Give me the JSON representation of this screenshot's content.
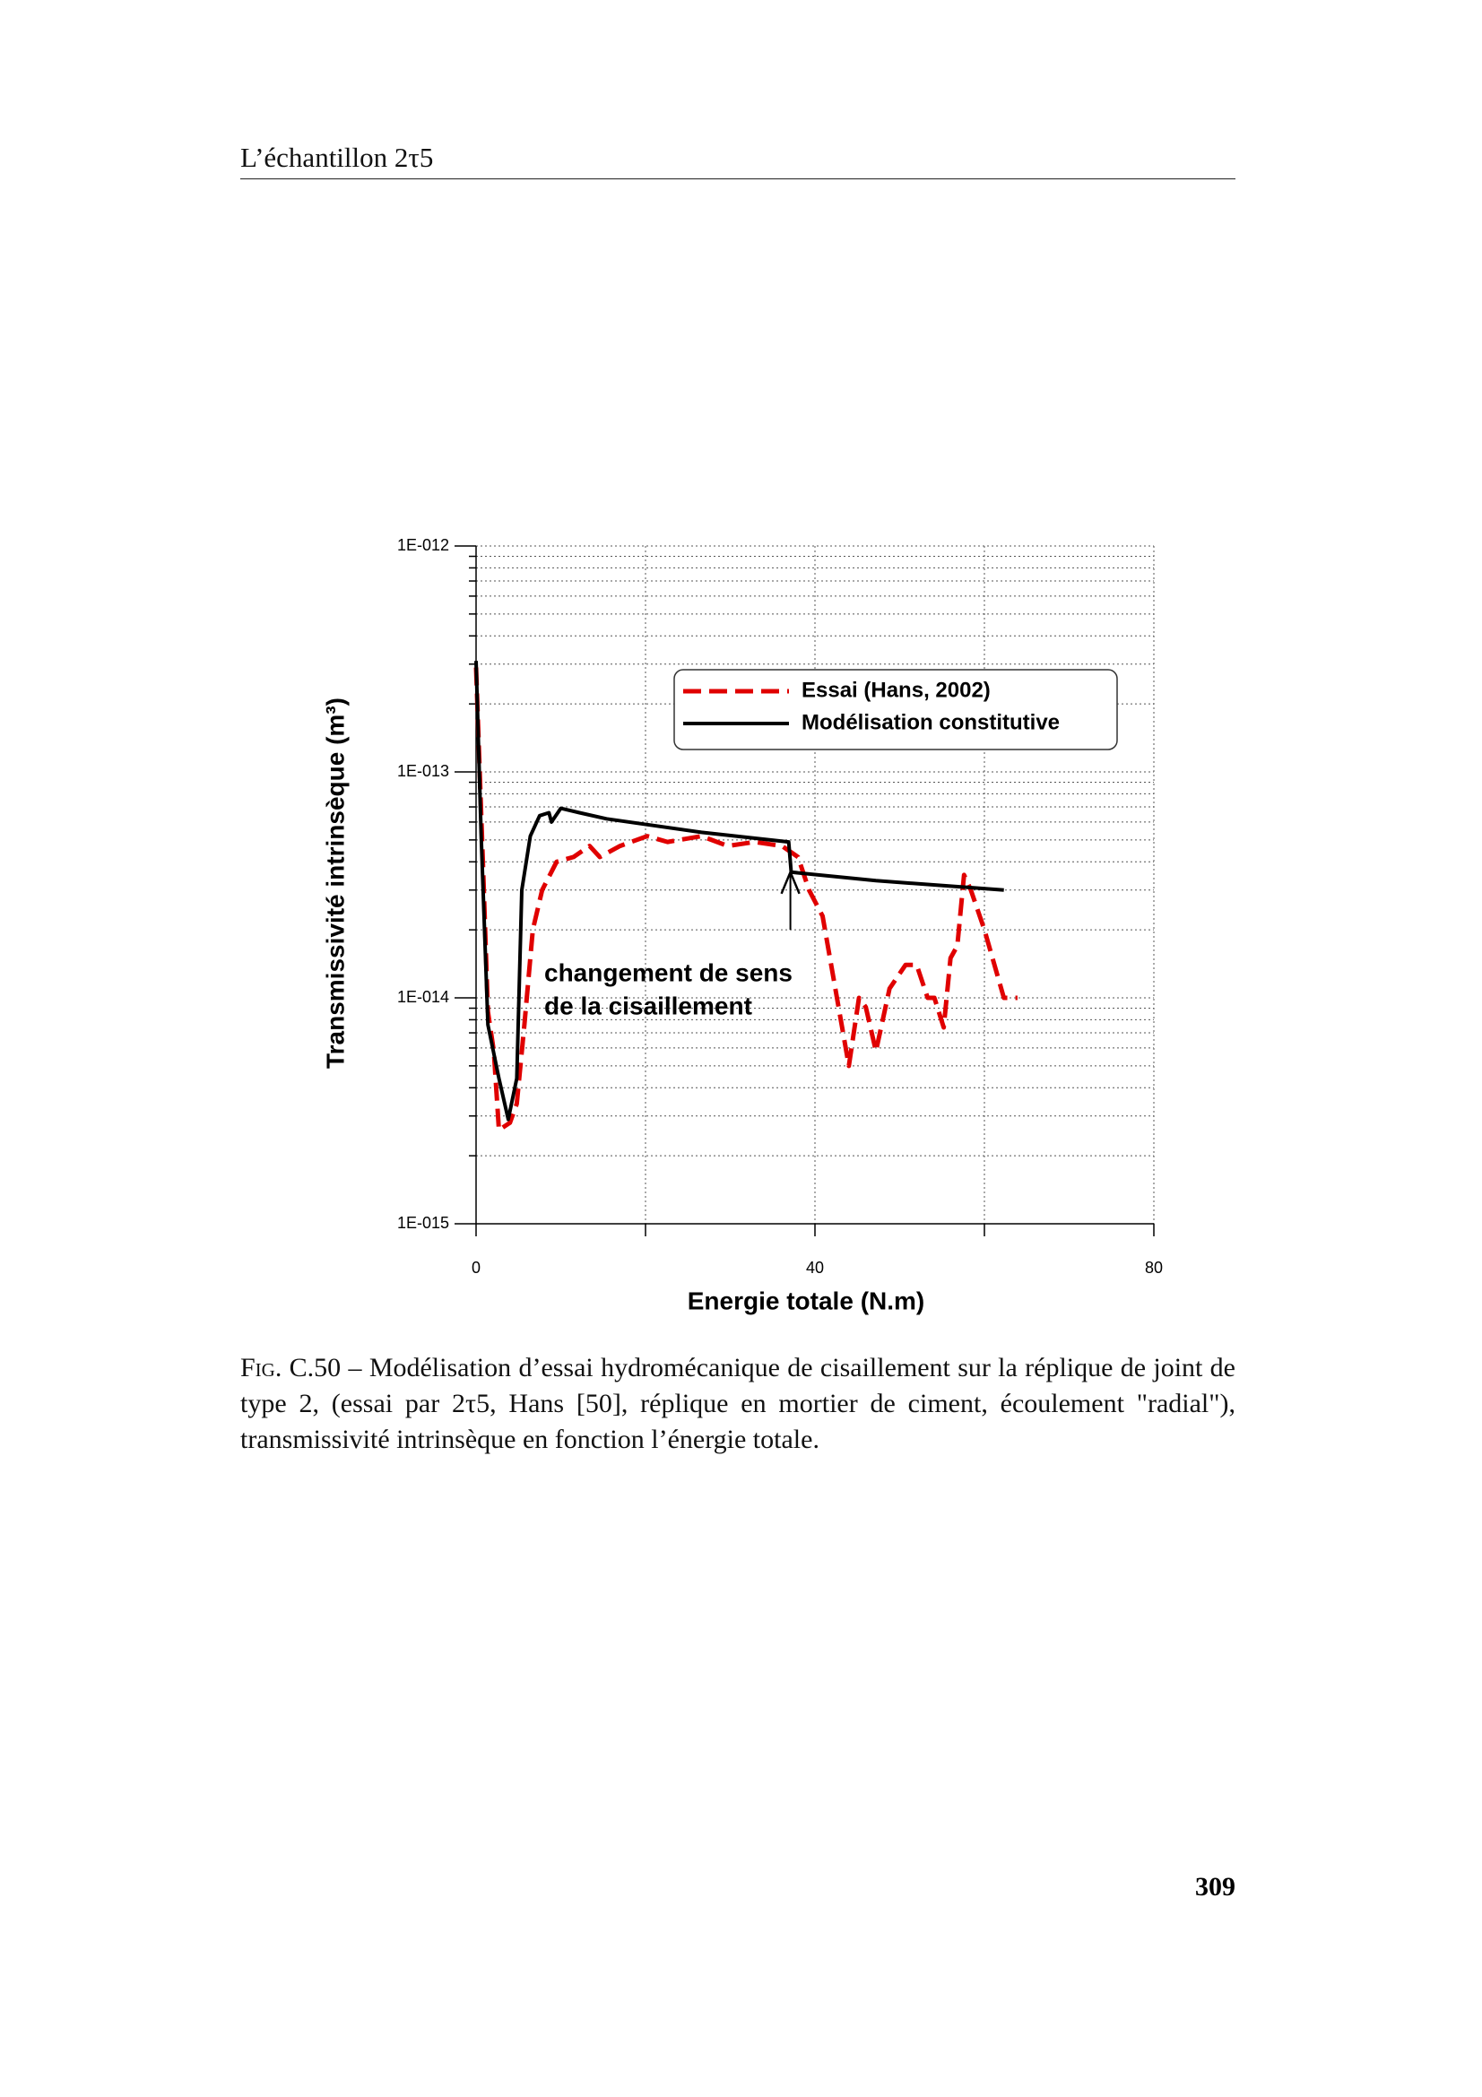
{
  "header": {
    "title": "L’échantillon 2τ5"
  },
  "chart_data": {
    "type": "line",
    "xlabel": "Energie totale (N.m)",
    "ylabel": "Transmissivité intrinsèque (m³)",
    "xlim": [
      0,
      80
    ],
    "xticks": [
      0,
      40,
      80
    ],
    "x_minor_ticks": [
      20,
      60
    ],
    "ylim": [
      1e-15,
      1e-12
    ],
    "log_y": true,
    "grid": true,
    "yticks": [
      {
        "value": 1e-12,
        "label": "1E-012"
      },
      {
        "value": 1e-13,
        "label": "1E-013"
      },
      {
        "value": 1e-14,
        "label": "1E-014"
      },
      {
        "value": 1e-15,
        "label": "1E-015"
      }
    ],
    "legend": "upper right",
    "series": [
      {
        "name": "Essai (Hans, 2002)",
        "color": "#e00000",
        "style": "dashed",
        "x": [
          0,
          0.8,
          1.4,
          2.1,
          2.7,
          4,
          4.8,
          5.7,
          6.7,
          7.8,
          9.5,
          11.5,
          13.4,
          14.6,
          17,
          20.2,
          22.6,
          26.6,
          29.7,
          32.9,
          36.1,
          38,
          39.3,
          40.9,
          42.4,
          44,
          45.2,
          46,
          47.2,
          48.8,
          50.7,
          52,
          53.3,
          54.1,
          55.2,
          56,
          56.8,
          57.6,
          58.4,
          60,
          62.3,
          63.9
        ],
        "values": [
          2.9e-13,
          4e-14,
          8.7e-15,
          5.8e-15,
          2.6e-15,
          2.8e-15,
          3.4e-15,
          7.6e-15,
          2e-14,
          3e-14,
          4e-14,
          4.2e-14,
          4.7e-14,
          4.2e-14,
          4.7e-14,
          5.2e-14,
          4.9e-14,
          5.2e-14,
          4.7e-14,
          4.9e-14,
          4.7e-14,
          4.2e-14,
          3e-14,
          2.3e-14,
          1.1e-14,
          5e-15,
          1e-14,
          9.1e-15,
          5.8e-15,
          1.1e-14,
          1.4e-14,
          1.4e-14,
          1e-14,
          1e-14,
          7.4e-15,
          1.5e-14,
          1.7e-14,
          3.5e-14,
          3e-14,
          2e-14,
          1e-14,
          1e-14
        ]
      },
      {
        "name": "Modélisation constitutive",
        "color": "#000000",
        "style": "solid",
        "x": [
          0,
          0.6,
          1.4,
          2.7,
          3.8,
          4.8,
          5.4,
          6.4,
          7.5,
          8.6,
          8.9,
          10,
          12.2,
          15.4,
          26.6,
          36.9,
          37.2,
          47.2,
          62.3
        ],
        "values": [
          3.1e-13,
          5.2e-14,
          7.6e-15,
          4.4e-15,
          2.9e-15,
          4.4e-15,
          3e-14,
          5.2e-14,
          6.4e-14,
          6.6e-14,
          6e-14,
          6.9e-14,
          6.6e-14,
          6.2e-14,
          5.4e-14,
          4.9e-14,
          3.6e-14,
          3.3e-14,
          3e-14
        ]
      }
    ],
    "annotation": {
      "lines": [
        "changement de sens",
        "de la cisaillement"
      ],
      "arrow_x": 37.1,
      "arrow_from": 2e-14,
      "arrow_to": 3.6e-14
    }
  },
  "caption": {
    "label": "Fig. C.50",
    "text": "– Modélisation d’essai hydromécanique de cisaillement sur la réplique de joint de type 2, (essai par 2τ5, Hans [50], réplique en mortier de ciment, écoulement \"radial\"), transmissivité intrinsèque en fonction l’énergie totale."
  },
  "page_number": "309"
}
